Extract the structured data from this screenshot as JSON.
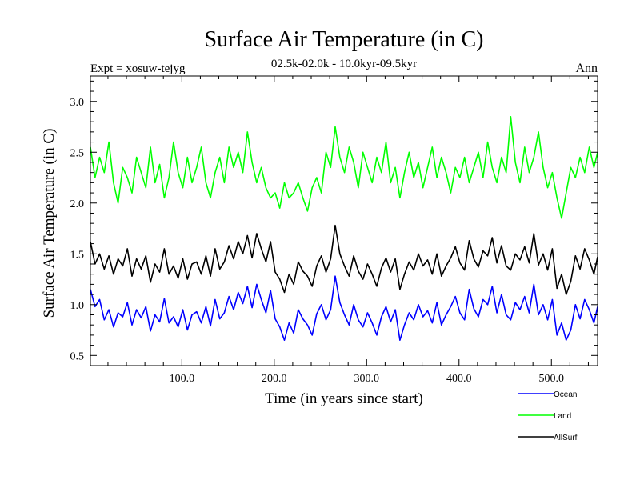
{
  "chart_data": {
    "type": "line",
    "title": "Surface Air Temperature (in C)",
    "subtitle": "02.5k-02.0k - 10.0kyr-09.5kyr",
    "expt_label": "Expt = xosuw-tejyg",
    "period_label": "Ann",
    "xlabel": "Time (in years since start)",
    "ylabel": "Surface Air Temperature (in C)",
    "xlim": [
      1,
      550
    ],
    "ylim": [
      0.4,
      3.25
    ],
    "xticks": [
      100,
      200,
      300,
      400,
      500
    ],
    "xtick_labels": [
      "100.0",
      "200.0",
      "300.0",
      "400.0",
      "500.0"
    ],
    "yticks": [
      0.5,
      1.0,
      1.5,
      2.0,
      2.5,
      3.0
    ],
    "ytick_labels": [
      "0.5",
      "1.0",
      "1.5",
      "2.0",
      "2.5",
      "3.0"
    ],
    "x_step": 5,
    "series": [
      {
        "name": "Ocean",
        "color": "#0000ff",
        "start_x": 1,
        "values": [
          1.15,
          0.98,
          1.05,
          0.85,
          0.95,
          0.78,
          0.92,
          0.88,
          1.02,
          0.8,
          0.95,
          0.87,
          0.98,
          0.74,
          0.9,
          0.83,
          1.06,
          0.82,
          0.88,
          0.78,
          0.95,
          0.75,
          0.9,
          0.93,
          0.82,
          0.98,
          0.79,
          1.05,
          0.86,
          0.92,
          1.08,
          0.95,
          1.12,
          1.01,
          1.18,
          0.97,
          1.2,
          1.05,
          0.92,
          1.14,
          0.86,
          0.78,
          0.65,
          0.82,
          0.72,
          0.95,
          0.86,
          0.8,
          0.7,
          0.91,
          1.0,
          0.85,
          0.95,
          1.28,
          1.02,
          0.9,
          0.8,
          1.0,
          0.85,
          0.78,
          0.92,
          0.82,
          0.7,
          0.88,
          0.98,
          0.83,
          0.95,
          0.65,
          0.8,
          0.92,
          0.85,
          1.0,
          0.88,
          0.94,
          0.82,
          1.02,
          0.8,
          0.9,
          0.98,
          1.08,
          0.92,
          0.85,
          1.15,
          0.96,
          0.88,
          1.05,
          1.0,
          1.18,
          0.92,
          1.1,
          0.9,
          0.85,
          1.02,
          0.95,
          1.08,
          0.92,
          1.2,
          0.9,
          1.0,
          0.85,
          1.05,
          0.7,
          0.82,
          0.65,
          0.75,
          1.0,
          0.86,
          1.05,
          0.95,
          0.82,
          0.98
        ]
      },
      {
        "name": "Land",
        "color": "#00ff00",
        "start_x": 1,
        "values": [
          2.55,
          2.25,
          2.45,
          2.3,
          2.6,
          2.2,
          2.0,
          2.35,
          2.25,
          2.1,
          2.45,
          2.3,
          2.15,
          2.55,
          2.2,
          2.38,
          2.05,
          2.25,
          2.6,
          2.3,
          2.15,
          2.45,
          2.2,
          2.35,
          2.55,
          2.2,
          2.05,
          2.3,
          2.45,
          2.2,
          2.55,
          2.35,
          2.5,
          2.3,
          2.7,
          2.4,
          2.2,
          2.35,
          2.15,
          2.05,
          2.1,
          1.95,
          2.2,
          2.05,
          2.1,
          2.2,
          2.05,
          1.92,
          2.15,
          2.25,
          2.1,
          2.5,
          2.35,
          2.75,
          2.45,
          2.3,
          2.55,
          2.4,
          2.15,
          2.5,
          2.35,
          2.2,
          2.45,
          2.3,
          2.6,
          2.2,
          2.35,
          2.05,
          2.3,
          2.5,
          2.25,
          2.4,
          2.15,
          2.35,
          2.55,
          2.25,
          2.45,
          2.3,
          2.1,
          2.35,
          2.25,
          2.45,
          2.2,
          2.35,
          2.5,
          2.25,
          2.6,
          2.35,
          2.2,
          2.45,
          2.3,
          2.85,
          2.4,
          2.2,
          2.55,
          2.3,
          2.45,
          2.7,
          2.35,
          2.15,
          2.3,
          2.05,
          1.85,
          2.1,
          2.35,
          2.25,
          2.45,
          2.3,
          2.55,
          2.35,
          2.5
        ]
      },
      {
        "name": "AllSurf",
        "color": "#000000",
        "start_x": 1,
        "values": [
          1.62,
          1.4,
          1.5,
          1.35,
          1.48,
          1.3,
          1.45,
          1.38,
          1.55,
          1.28,
          1.45,
          1.35,
          1.48,
          1.22,
          1.4,
          1.32,
          1.55,
          1.3,
          1.38,
          1.26,
          1.45,
          1.25,
          1.4,
          1.42,
          1.3,
          1.48,
          1.28,
          1.55,
          1.35,
          1.42,
          1.58,
          1.45,
          1.62,
          1.5,
          1.68,
          1.46,
          1.7,
          1.55,
          1.42,
          1.62,
          1.32,
          1.25,
          1.12,
          1.3,
          1.2,
          1.42,
          1.33,
          1.28,
          1.18,
          1.38,
          1.48,
          1.32,
          1.45,
          1.78,
          1.5,
          1.38,
          1.28,
          1.48,
          1.33,
          1.25,
          1.4,
          1.3,
          1.18,
          1.36,
          1.46,
          1.32,
          1.45,
          1.15,
          1.3,
          1.42,
          1.34,
          1.5,
          1.38,
          1.44,
          1.3,
          1.5,
          1.28,
          1.38,
          1.46,
          1.57,
          1.41,
          1.34,
          1.63,
          1.45,
          1.37,
          1.53,
          1.48,
          1.66,
          1.41,
          1.58,
          1.38,
          1.34,
          1.5,
          1.44,
          1.57,
          1.41,
          1.7,
          1.39,
          1.5,
          1.34,
          1.55,
          1.16,
          1.3,
          1.1,
          1.23,
          1.48,
          1.35,
          1.55,
          1.44,
          1.3,
          1.47
        ]
      }
    ],
    "legend_position": "bottom-right"
  }
}
